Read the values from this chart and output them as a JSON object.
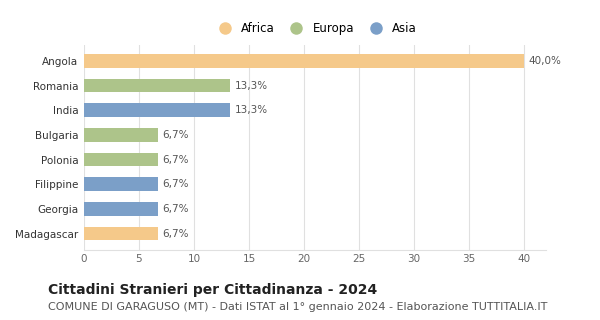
{
  "categories": [
    "Madagascar",
    "Georgia",
    "Filippine",
    "Polonia",
    "Bulgaria",
    "India",
    "Romania",
    "Angola"
  ],
  "values": [
    6.7,
    6.7,
    6.7,
    6.7,
    6.7,
    13.3,
    13.3,
    40.0
  ],
  "labels": [
    "6,7%",
    "6,7%",
    "6,7%",
    "6,7%",
    "6,7%",
    "13,3%",
    "13,3%",
    "40,0%"
  ],
  "colors": [
    "#f5c98a",
    "#7b9fc8",
    "#7b9fc8",
    "#adc48a",
    "#adc48a",
    "#7b9fc8",
    "#adc48a",
    "#f5c98a"
  ],
  "legend_labels": [
    "Africa",
    "Europa",
    "Asia"
  ],
  "legend_colors": [
    "#f5c98a",
    "#adc48a",
    "#7b9fc8"
  ],
  "xlim": [
    0,
    42
  ],
  "xticks": [
    0,
    5,
    10,
    15,
    20,
    25,
    30,
    35,
    40
  ],
  "title": "Cittadini Stranieri per Cittadinanza - 2024",
  "subtitle": "COMUNE DI GARAGUSO (MT) - Dati ISTAT al 1° gennaio 2024 - Elaborazione TUTTITALIA.IT",
  "title_fontsize": 10,
  "subtitle_fontsize": 8,
  "label_fontsize": 7.5,
  "tick_fontsize": 7.5,
  "bar_height": 0.55,
  "bg_color": "#ffffff",
  "grid_color": "#e0e0e0"
}
